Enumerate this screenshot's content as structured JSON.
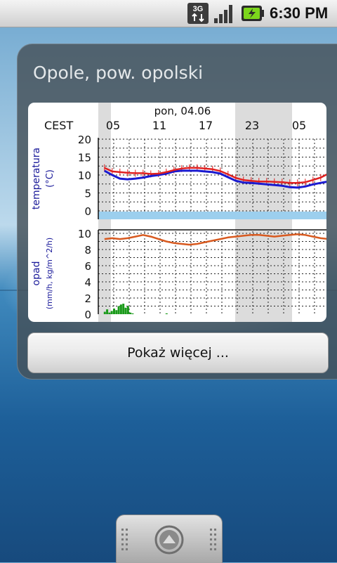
{
  "status_bar": {
    "network_type": "3G",
    "time": "6:30 PM",
    "icons": [
      "3g-data-icon",
      "signal-strength-icon",
      "battery-charging-icon"
    ]
  },
  "widget": {
    "title": "Opole, pow. opolski",
    "button_label": "Pokaż więcej ..."
  },
  "colors": {
    "temperature_line": "#e02020",
    "sensed_line": "#1a1ad0",
    "humidity_line": "#d85a20",
    "precip_bars": "#1a9a1a",
    "label_blue": "#1a1a9a",
    "night_shade": "#dcdcdc",
    "freezing_band": "#9ccfee"
  },
  "chart_data": [
    {
      "type": "line",
      "timezone_label": "CEST",
      "date_label": "pon, 04.06",
      "hour_labels": [
        "05",
        "11",
        "17",
        "23",
        "05"
      ],
      "ylabel": "temperatura",
      "yunit": "(°C)",
      "yticks": [
        0,
        5,
        10,
        15,
        20
      ],
      "ylim": [
        -2,
        20
      ],
      "x_hours": [
        0,
        1,
        2,
        3,
        4,
        5,
        6,
        7,
        8,
        9,
        10,
        11,
        12,
        13,
        14,
        15,
        16,
        17,
        18,
        19,
        20,
        21,
        22,
        23,
        24,
        25,
        26,
        27,
        28,
        29
      ],
      "series": [
        {
          "values": [
            12,
            11,
            10.8,
            10.6,
            10.5,
            10.5,
            10.3,
            10.4,
            10.8,
            11.4,
            11.8,
            12,
            12,
            11.8,
            11.6,
            11.1,
            10.2,
            9.2,
            8.6,
            8.4,
            8.2,
            8.2,
            8.1,
            8,
            7.8,
            7.8,
            8,
            8.6,
            9.3,
            10.4
          ]
        },
        {
          "values": [
            11.2,
            10,
            9,
            8.8,
            9,
            9.3,
            9.7,
            10,
            10.4,
            11,
            11.2,
            11.2,
            11.2,
            11,
            10.8,
            10.4,
            9.4,
            8.4,
            7.9,
            7.8,
            7.6,
            7.4,
            7.2,
            7,
            6.6,
            6.5,
            6.8,
            7.4,
            7.8,
            8.2
          ]
        }
      ]
    },
    {
      "type": "line",
      "ylabel": "opad",
      "yunit": "(mm/h, kg/m^2/h)",
      "yticks": [
        0,
        2,
        4,
        6,
        8,
        10
      ],
      "ylim": [
        0,
        10.5
      ],
      "x_hours": [
        0,
        1,
        2,
        3,
        4,
        5,
        6,
        7,
        8,
        9,
        10,
        11,
        12,
        13,
        14,
        15,
        16,
        17,
        18,
        19,
        20,
        21,
        22,
        23,
        24,
        25,
        26,
        27,
        28,
        29
      ],
      "series": [
        {
          "values": [
            9.3,
            9.4,
            9.3,
            9.4,
            9.6,
            9.8,
            9.6,
            9.3,
            9,
            8.8,
            8.7,
            8.6,
            8.7,
            8.9,
            9.1,
            9.3,
            9.5,
            9.6,
            9.7,
            9.8,
            9.8,
            9.7,
            9.6,
            9.7,
            9.8,
            9.9,
            9.8,
            9.6,
            9.4,
            9.3
          ]
        }
      ],
      "precip_bars": {
        "x_hours": [
          0.0,
          0.3,
          0.6,
          0.9,
          1.2,
          1.5,
          1.8,
          2.1,
          2.4,
          2.7,
          3.0,
          3.3,
          3.6,
          8.0
        ],
        "values": [
          0.3,
          0.6,
          0.2,
          0.4,
          0.7,
          0.5,
          1.0,
          1.2,
          1.3,
          0.8,
          1.0,
          0.2,
          0.1,
          0.1
        ]
      }
    }
  ]
}
